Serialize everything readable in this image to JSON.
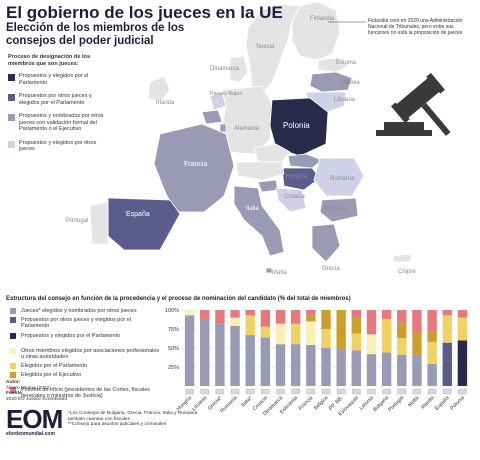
{
  "header": {
    "title": "El gobierno de los jueces en la UE",
    "subtitle": "Elección de los miembros de los consejos del poder judicial"
  },
  "map": {
    "legend_title": "Proceso de designación de los miembros que son jueces:",
    "legend": [
      {
        "label": "Propuestos y elegidos por el Parlamento",
        "color": "#2a2a4a"
      },
      {
        "label": "Propuestos por otros jueces y elegidos por el Parlamento",
        "color": "#5c5c8c"
      },
      {
        "label": "Propuestos y nombrados por otros jueces con validación formal del Parlamento o el Ejecutivo",
        "color": "#9a9ab4"
      },
      {
        "label": "Propuestos y elegidos por otros jueces",
        "color": "#d0d0e8"
      }
    ],
    "note": "Finlandia creó en 2020 una Administración Nacional de Tribunales, pero entre sus funciones no está la proposición de jueces",
    "countries": [
      {
        "name": "Finlandia",
        "color": "#e4e4e4"
      },
      {
        "name": "Suecia",
        "color": "#e4e4e4"
      },
      {
        "name": "Estonia",
        "color": "#e4e4e4"
      },
      {
        "name": "Letonia",
        "color": "#9a9ab4"
      },
      {
        "name": "Lituania",
        "color": "#d0d0e8"
      },
      {
        "name": "Dinamarca",
        "color": "#e4e4e4"
      },
      {
        "name": "Irlanda",
        "color": "#e4e4e4"
      },
      {
        "name": "Países Bajos",
        "color": "#d0d0e8"
      },
      {
        "name": "Bélgica",
        "color": "#9a9ab4"
      },
      {
        "name": "Alemania",
        "color": "#e4e4e4"
      },
      {
        "name": "Polonia",
        "color": "#2a2a4a"
      },
      {
        "name": "Chequia",
        "color": "#e4e4e4"
      },
      {
        "name": "Eslovaquia",
        "color": "#9a9ab4"
      },
      {
        "name": "Hungría",
        "color": "#5c5c8c"
      },
      {
        "name": "Austria",
        "color": "#e4e4e4"
      },
      {
        "name": "Eslovenia",
        "color": "#9a9ab4"
      },
      {
        "name": "Croacia",
        "color": "#d0d0e8"
      },
      {
        "name": "Rumanía",
        "color": "#d0d0e8"
      },
      {
        "name": "Bulgaria",
        "color": "#9a9ab4"
      },
      {
        "name": "Francia",
        "color": "#9a9ab4"
      },
      {
        "name": "Luxemburgo",
        "color": "#9a9ab4"
      },
      {
        "name": "Italia",
        "color": "#9a9ab4"
      },
      {
        "name": "España",
        "color": "#5c5c8c"
      },
      {
        "name": "Portugal",
        "color": "#e4e4e4"
      },
      {
        "name": "Grecia",
        "color": "#9a9ab4"
      },
      {
        "name": "Malta",
        "color": "#9a9ab4"
      },
      {
        "name": "Chipre",
        "color": "#e4e4e4"
      }
    ]
  },
  "chart_data": {
    "type": "bar",
    "title": "Estructura del consejo en función de la procedencia y el proceso de nominación del candidato (% del total de miembros)",
    "ylim": [
      0,
      100
    ],
    "yticks": [
      "25%",
      "50%",
      "75%",
      "100%"
    ],
    "categories": [
      "Hungría",
      "Lituania",
      "Grecia*",
      "Rumanía",
      "Italia*",
      "Croacia",
      "Dinamarca",
      "Eslovenia",
      "Francia",
      "Bélgica",
      "PP. BB.",
      "Eslovaquia",
      "Letonia",
      "Bulgaria",
      "Portugal",
      "Malta",
      "Irlanda",
      "España",
      "Polonia"
    ],
    "series": [
      {
        "name": "Jueces* elegidos y nombrados por otros jueces",
        "color": "#9a9ab4",
        "values": [
          93,
          87,
          82,
          79,
          67,
          64,
          55,
          55,
          54,
          50,
          49,
          47,
          42,
          44,
          41,
          40,
          29,
          0,
          0
        ]
      },
      {
        "name": "Propuestos por otros jueces y elegidos por el Parlamento",
        "color": "#5c5c8c",
        "values": [
          0,
          0,
          0,
          0,
          0,
          0,
          0,
          0,
          0,
          0,
          0,
          0,
          0,
          0,
          0,
          0,
          0,
          57,
          0
        ]
      },
      {
        "name": "Propuestos y elegidos por el Parlamento",
        "color": "#2a2a4a",
        "values": [
          0,
          0,
          0,
          0,
          0,
          0,
          0,
          0,
          0,
          0,
          0,
          0,
          0,
          0,
          0,
          0,
          0,
          0,
          60
        ]
      },
      {
        "name": "Otros miembros elegidos por asociaciones profesionales u otras autoridades",
        "color": "#faf0b4",
        "values": [
          7,
          0,
          0,
          11,
          0,
          0,
          27,
          0,
          31,
          0,
          0,
          0,
          26,
          0,
          0,
          0,
          0,
          0,
          0
        ]
      },
      {
        "name": "Elegidos por el Parlamento",
        "color": "#f0d264",
        "values": [
          0,
          0,
          0,
          0,
          26,
          14,
          0,
          27,
          0,
          25,
          0,
          22,
          0,
          44,
          22,
          0,
          29,
          36,
          30
        ]
      },
      {
        "name": "Elegidos por el Ejecutivo",
        "color": "#c8a02a",
        "values": [
          0,
          0,
          0,
          0,
          0,
          0,
          0,
          0,
          8,
          25,
          51,
          22,
          0,
          0,
          20,
          30,
          14,
          0,
          0
        ]
      },
      {
        "name": "Puestos de oficio (presidentes de las Cortes, fiscales generales o ministros de Justicia)",
        "color": "#e6787e",
        "values": [
          0,
          13,
          18,
          10,
          7,
          22,
          18,
          18,
          7,
          0,
          0,
          9,
          32,
          12,
          17,
          30,
          28,
          7,
          10
        ]
      }
    ]
  },
  "credits": {
    "author_label": "Autor:",
    "author": "Álvaro Merino (2022)",
    "source_label": "Fuente:",
    "source": "2020 EU Justice Scoreboard"
  },
  "footer": {
    "logo": "EOM",
    "logo_sub": "elordenmundial.com",
    "note1": "*Los Consejos de Bulgaria, Grecia, Francia, Italia y Rumanía también cuentan con fiscales",
    "note2": "**Consejo para asuntos judiciales y criminales"
  }
}
